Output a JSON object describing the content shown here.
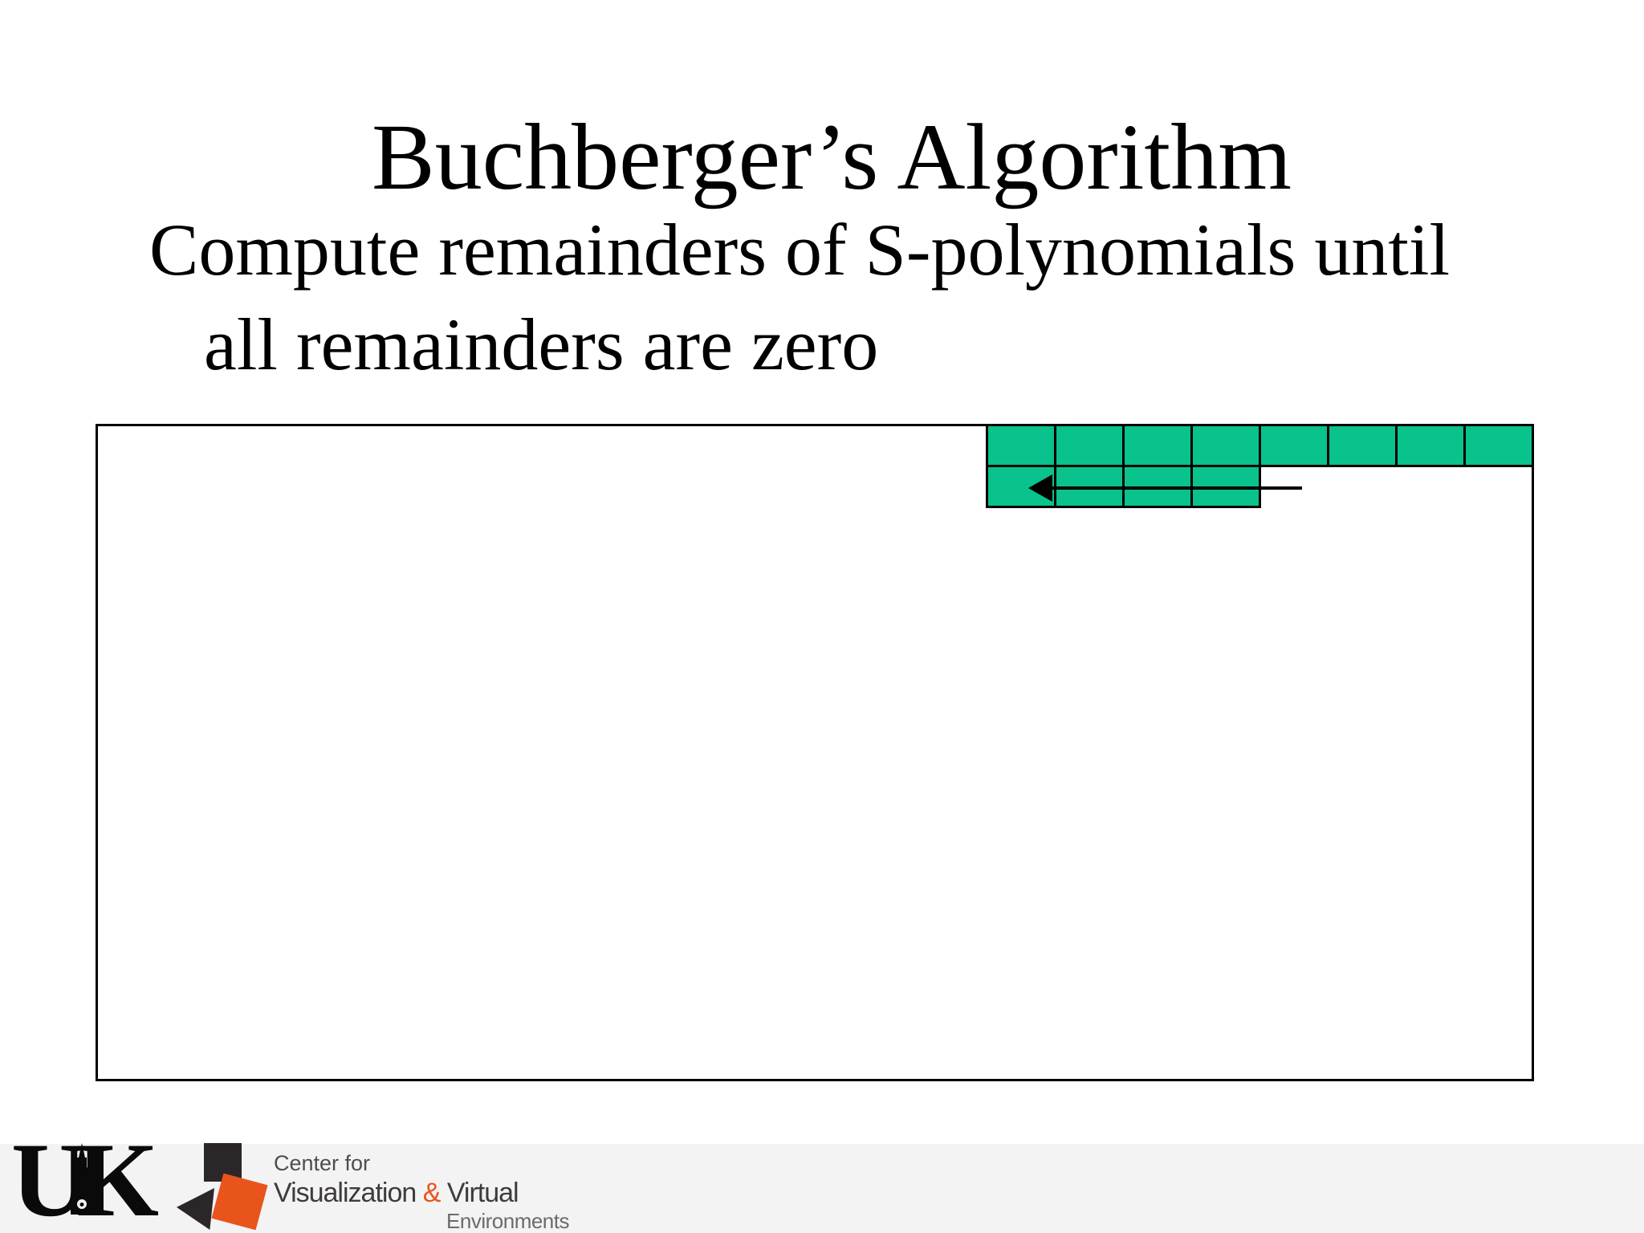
{
  "slide": {
    "title": "Buchberger’s Algorithm",
    "subtitle_line1": "Compute remainders of S-polynomials until",
    "subtitle_line2": "all remainders are zero"
  },
  "diagram": {
    "grid": {
      "rows": [
        8,
        4
      ],
      "cell_color": "#09c28c",
      "border_color": "#000000"
    },
    "arrow": {
      "direction": "left"
    }
  },
  "footer": {
    "uk_logo_text": "UK",
    "cvve": {
      "line1": "Center for",
      "line2_part1": "Visualization ",
      "line2_amp": "&",
      "line2_part2": " Virtual",
      "line3": "Environments",
      "accent_color": "#e8541c"
    }
  }
}
